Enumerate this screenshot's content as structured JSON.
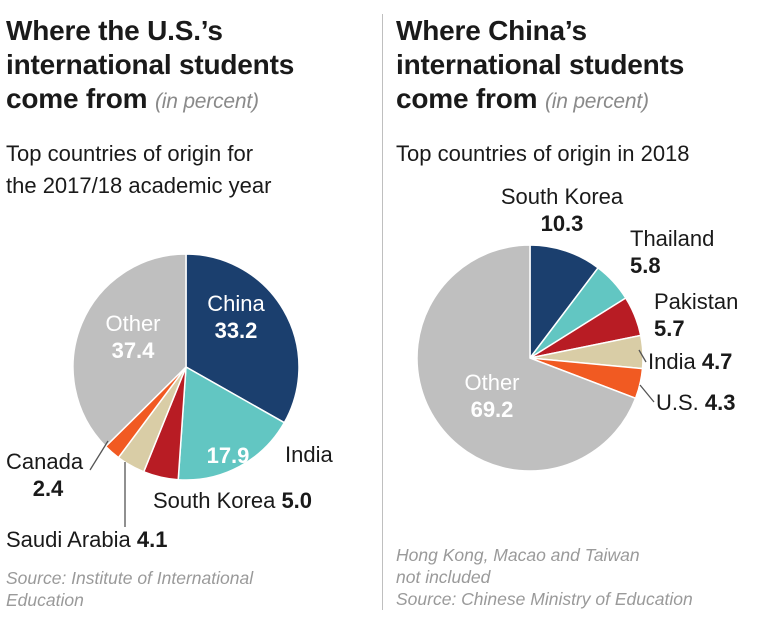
{
  "left": {
    "title_lines": [
      "Where the U.S.’s",
      "international students",
      "come from"
    ],
    "title_unit": "(in percent)",
    "subtitle_lines": [
      "Top countries of origin for",
      "the 2017/18 academic year"
    ],
    "source_lines": [
      "Source: Institute of International",
      "Education"
    ]
  },
  "right": {
    "title_lines": [
      "Where China’s",
      "international students",
      "come from"
    ],
    "title_unit": "(in percent)",
    "subtitle_lines": [
      "Top countries of origin in 2018"
    ],
    "source_lines": [
      "Hong Kong, Macao and Taiwan",
      "not included",
      "Source: Chinese Ministry of Education"
    ]
  },
  "chart_data": [
    {
      "type": "pie",
      "title": "Where the U.S.’s international students come from",
      "slices": [
        {
          "label": "China",
          "value": 33.2,
          "value_text": "33.2",
          "color": "#1b3f6e"
        },
        {
          "label": "India",
          "value": 17.9,
          "value_text": "17.9",
          "color": "#62c6c2"
        },
        {
          "label": "South Korea",
          "value": 5.0,
          "value_text": "5.0",
          "color": "#b81c24"
        },
        {
          "label": "Saudi Arabia",
          "value": 4.1,
          "value_text": "4.1",
          "color": "#d9cda6"
        },
        {
          "label": "Canada",
          "value": 2.4,
          "value_text": "2.4",
          "color": "#f15a22"
        },
        {
          "label": "Other",
          "value": 37.4,
          "value_text": "37.4",
          "color": "#bfbfbf"
        }
      ]
    },
    {
      "type": "pie",
      "title": "Where China’s international students come from",
      "slices": [
        {
          "label": "South Korea",
          "value": 10.3,
          "value_text": "10.3",
          "color": "#1b3f6e"
        },
        {
          "label": "Thailand",
          "value": 5.8,
          "value_text": "5.8",
          "color": "#62c6c2"
        },
        {
          "label": "Pakistan",
          "value": 5.7,
          "value_text": "5.7",
          "color": "#b81c24"
        },
        {
          "label": "India",
          "value": 4.7,
          "value_text": "4.7",
          "color": "#d9cda6"
        },
        {
          "label": "U.S.",
          "value": 4.3,
          "value_text": "4.3",
          "color": "#f15a22"
        },
        {
          "label": "Other",
          "value": 69.2,
          "value_text": "69.2",
          "color": "#bfbfbf"
        }
      ]
    }
  ]
}
